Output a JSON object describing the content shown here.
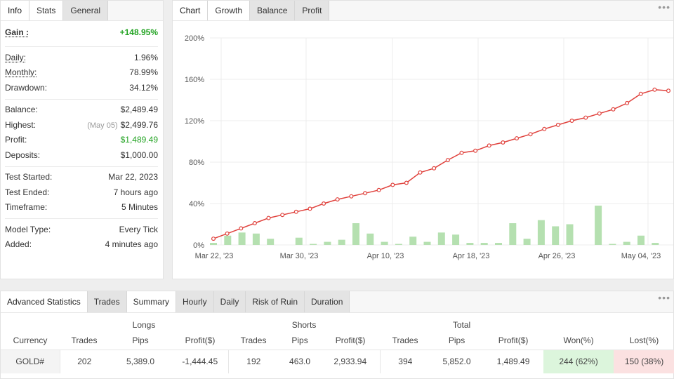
{
  "info": {
    "tabs": [
      "Info",
      "Stats",
      "General"
    ],
    "active_tab": "Stats",
    "gain": {
      "label": "Gain :",
      "value": "+148.95%"
    },
    "daily": {
      "label": "Daily:",
      "value": "1.96%"
    },
    "monthly": {
      "label": "Monthly:",
      "value": "78.99%"
    },
    "drawdown": {
      "label": "Drawdown:",
      "value": "34.12%"
    },
    "balance": {
      "label": "Balance:",
      "value": "$2,489.49"
    },
    "highest": {
      "label": "Highest:",
      "note": "(May 05)",
      "value": "$2,499.76"
    },
    "profit": {
      "label": "Profit:",
      "value": "$1,489.49"
    },
    "deposits": {
      "label": "Deposits:",
      "value": "$1,000.00"
    },
    "test_started": {
      "label": "Test Started:",
      "value": "Mar 22, 2023"
    },
    "test_ended": {
      "label": "Test Ended:",
      "value": "7 hours ago"
    },
    "timeframe": {
      "label": "Timeframe:",
      "value": "5 Minutes"
    },
    "model_type": {
      "label": "Model Type:",
      "value": "Every Tick"
    },
    "added": {
      "label": "Added:",
      "value": "4 minutes ago"
    }
  },
  "chart": {
    "tabs": [
      "Chart",
      "Growth",
      "Balance",
      "Profit"
    ],
    "active_tab": "Growth",
    "menu_icon": "more-dots-icon"
  },
  "chart_data": {
    "type": "line",
    "y_ticks": [
      "200%",
      "160%",
      "120%",
      "80%",
      "40%",
      "0%"
    ],
    "ylim": [
      0,
      200
    ],
    "x_ticks": [
      "Mar 22, '23",
      "Mar 30, '23",
      "Apr 10, '23",
      "Apr 18, '23",
      "Apr 26, '23",
      "May 04, '23"
    ],
    "grid": true,
    "series": [
      {
        "kind": "line",
        "color": "#e0413c",
        "values": [
          6,
          11,
          16,
          21,
          26,
          29,
          32,
          35,
          40,
          44,
          47,
          50,
          53,
          58,
          60,
          70,
          74,
          82,
          89,
          91,
          96,
          99,
          103,
          107,
          112,
          116,
          120,
          123,
          127,
          131,
          137,
          146,
          150,
          149
        ]
      },
      {
        "kind": "bar",
        "color": "#b5e0b0",
        "values": [
          2,
          9,
          12,
          11,
          6,
          0,
          7,
          1,
          3,
          5,
          21,
          11,
          3,
          1,
          8,
          3,
          12,
          10,
          2,
          2,
          2,
          21,
          6,
          24,
          18,
          20,
          0,
          38,
          1,
          3,
          9,
          2,
          0
        ]
      }
    ]
  },
  "stats": {
    "tabs": [
      "Advanced Statistics",
      "Trades",
      "Summary",
      "Hourly",
      "Daily",
      "Risk of Ruin",
      "Duration"
    ],
    "active_tab": "Summary",
    "group_headers": {
      "longs": "Longs",
      "shorts": "Shorts",
      "total": "Total"
    },
    "columns": [
      "Currency",
      "Trades",
      "Pips",
      "Profit($)",
      "Trades",
      "Pips",
      "Profit($)",
      "Trades",
      "Pips",
      "Profit($)",
      "Won(%)",
      "Lost(%)"
    ],
    "row": {
      "currency": "GOLD#",
      "long_trades": "202",
      "long_pips": "5,389.0",
      "long_profit": "-1,444.45",
      "short_trades": "192",
      "short_pips": "463.0",
      "short_profit": "2,933.94",
      "total_trades": "394",
      "total_pips": "5,852.0",
      "total_profit": "1,489.49",
      "won": "244 (62%)",
      "lost": "150 (38%)"
    }
  }
}
